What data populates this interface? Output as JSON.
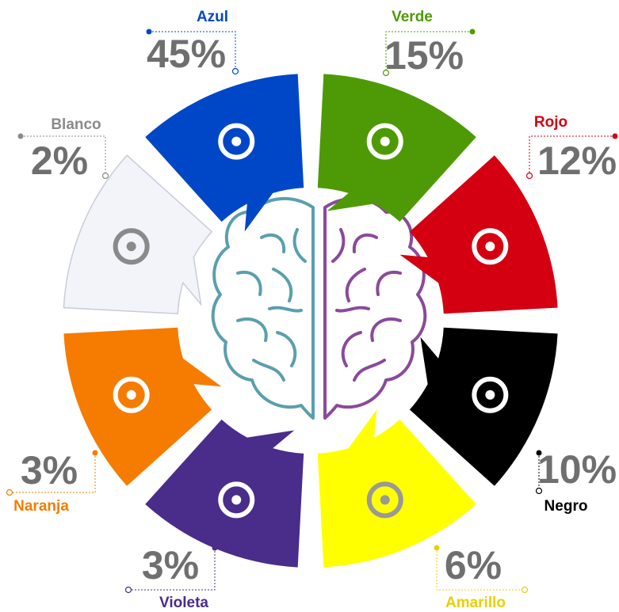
{
  "segments": [
    {
      "name": "Azul",
      "percent": "45%"
    },
    {
      "name": "Verde",
      "percent": "15%"
    },
    {
      "name": "Rojo",
      "percent": "12%"
    },
    {
      "name": "Negro",
      "percent": "10%"
    },
    {
      "name": "Amarillo",
      "percent": "6%"
    },
    {
      "name": "Violeta",
      "percent": "3%"
    },
    {
      "name": "Naranja",
      "percent": "3%"
    },
    {
      "name": "Blanco",
      "percent": "2%"
    }
  ]
}
